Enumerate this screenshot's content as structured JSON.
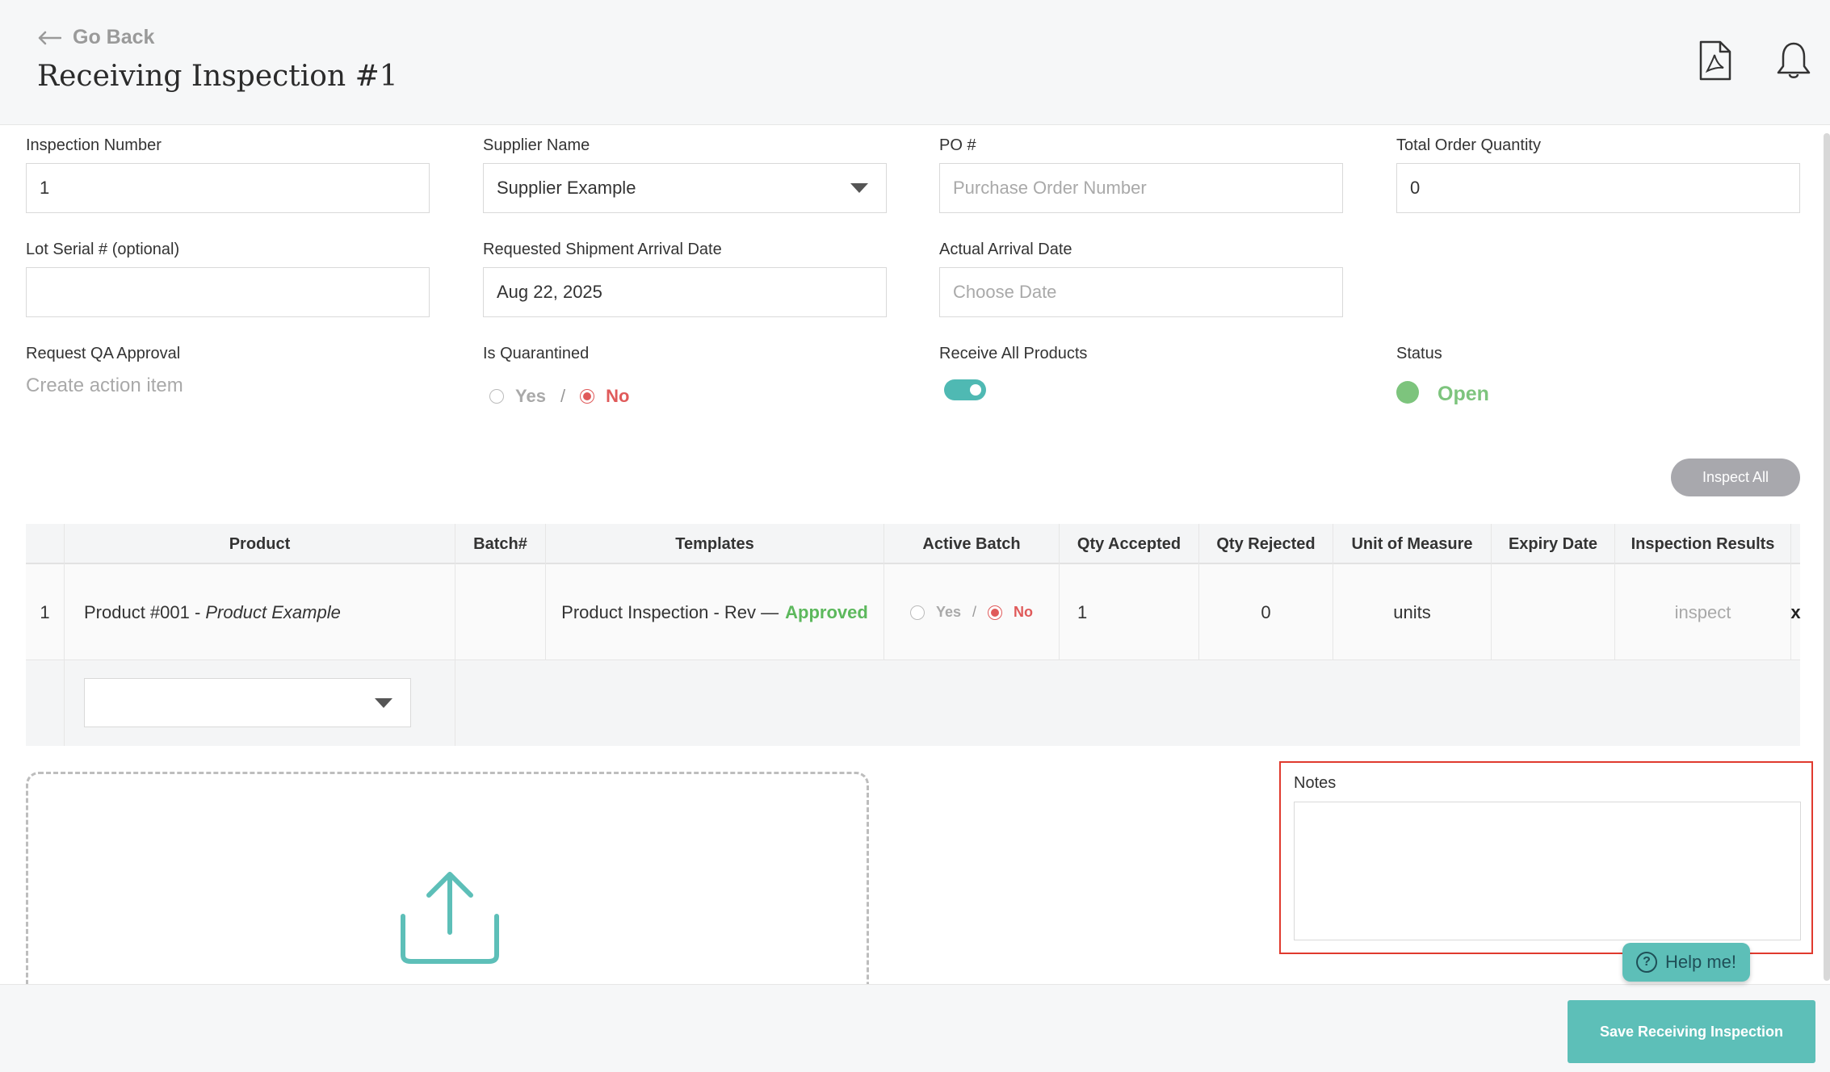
{
  "header": {
    "back_label": "Go Back",
    "title": "Receiving Inspection #1"
  },
  "form": {
    "inspection_number": {
      "label": "Inspection Number",
      "value": "1"
    },
    "supplier_name": {
      "label": "Supplier Name",
      "value": "Supplier Example"
    },
    "po_number": {
      "label": "PO #",
      "placeholder": "Purchase Order Number"
    },
    "total_order_quantity": {
      "label": "Total Order Quantity",
      "value": "0"
    },
    "lot_serial": {
      "label": "Lot Serial # (optional)",
      "value": ""
    },
    "requested_arrival": {
      "label": "Requested Shipment Arrival Date",
      "value": "Aug 22, 2025"
    },
    "actual_arrival": {
      "label": "Actual Arrival Date",
      "placeholder": "Choose Date"
    },
    "request_qa": {
      "label": "Request QA Approval",
      "link": "Create action item"
    },
    "quarantined": {
      "label": "Is Quarantined",
      "yes": "Yes",
      "sep": "/",
      "no": "No",
      "selected": "No"
    },
    "receive_all": {
      "label": "Receive All Products",
      "on": true
    },
    "status": {
      "label": "Status",
      "value": "Open",
      "color": "#7dc47d"
    }
  },
  "inspect_all_label": "Inspect All",
  "table": {
    "columns": [
      "Product",
      "Batch#",
      "Templates",
      "Active Batch",
      "Qty Accepted",
      "Qty Rejected",
      "Unit of Measure",
      "Expiry Date",
      "Inspection Results"
    ],
    "rows": [
      {
        "index": "1",
        "product_code": "Product #001 - ",
        "product_name": "Product Example",
        "batch": "",
        "template": "Product Inspection - Rev —",
        "template_status": "Approved",
        "active_yes": "Yes",
        "active_sep": "/",
        "active_no": "No",
        "qty_accepted": "1",
        "qty_rejected": "0",
        "unit": "units",
        "expiry": "",
        "inspection_result": "inspect",
        "remove": "x"
      }
    ]
  },
  "notes": {
    "label": "Notes",
    "value": ""
  },
  "help_label": "Help me!",
  "help_icon": "?",
  "save_label": "Save Receiving Inspection",
  "colors": {
    "accent": "#5dbfb8",
    "status_open": "#7dc47d",
    "danger": "#e05a5a",
    "approved": "#5cb85c"
  }
}
